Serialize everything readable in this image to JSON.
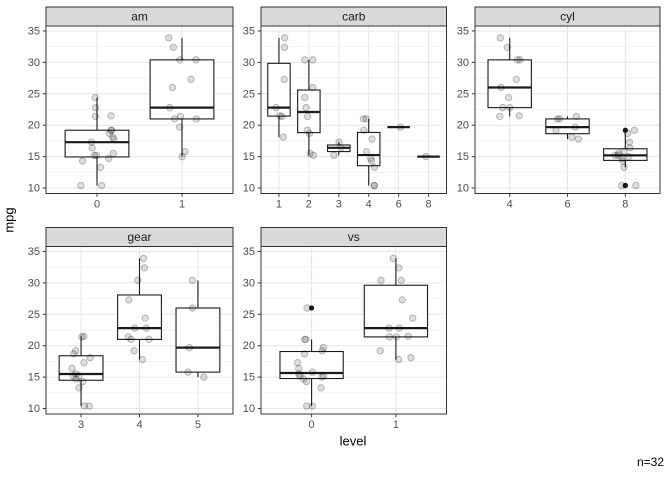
{
  "chart_data": {
    "type": "boxplot",
    "title": "",
    "xlabel": "level",
    "ylabel": "mpg",
    "annotation": "n=32",
    "y_ticks": [
      10,
      15,
      20,
      25,
      30,
      35
    ],
    "y_minor_ticks": [
      12.5,
      17.5,
      22.5,
      27.5,
      32.5
    ],
    "ylim": [
      9.13,
      35.79
    ],
    "grid": "major-and-minor-horizontal, major-vertical-at-levels",
    "legend": "none",
    "style": {
      "background": "#ffffff",
      "strip_fill": "#d9d9d9",
      "strip_text": "#1a1a1a",
      "panel_border": "#333333",
      "grid_major": "#e6e6e6",
      "grid_minor": "#f2f2f2",
      "box_stroke": "#1a1a1a",
      "box_fill": "#ffffff",
      "tick_mark": "#333333",
      "tick_text": "#4d4d4d",
      "jitter_fill": "rgba(0,0,0,0.13)",
      "jitter_stroke": "rgba(0,0,0,0.24)",
      "outlier_fill": "#1a1a1a"
    },
    "facets": [
      {
        "label": "am",
        "row": 0,
        "col": 0,
        "groups": [
          {
            "level": "0",
            "points": [
              21.4,
              18.7,
              18.1,
              14.3,
              24.4,
              22.8,
              19.2,
              17.8,
              16.4,
              17.3,
              15.2,
              10.4,
              10.4,
              14.7,
              21.5,
              15.5,
              15.2,
              13.3,
              19.2
            ],
            "box": {
              "lo": 10.4,
              "q1": 14.95,
              "med": 17.3,
              "q3": 19.2,
              "hi": 24.4,
              "outliers": []
            }
          },
          {
            "level": "1",
            "points": [
              21.0,
              21.0,
              22.8,
              32.4,
              30.4,
              33.9,
              27.3,
              26.0,
              30.4,
              15.8,
              19.7,
              15.0,
              21.4
            ],
            "box": {
              "lo": 15.0,
              "q1": 21.0,
              "med": 22.8,
              "q3": 30.4,
              "hi": 33.9,
              "outliers": []
            }
          }
        ]
      },
      {
        "label": "carb",
        "row": 0,
        "col": 1,
        "groups": [
          {
            "level": "1",
            "points": [
              22.8,
              21.4,
              18.1,
              32.4,
              33.9,
              21.5,
              27.3
            ],
            "box": {
              "lo": 18.1,
              "q1": 21.45,
              "med": 22.8,
              "q3": 29.85,
              "hi": 33.9,
              "outliers": []
            }
          },
          {
            "level": "2",
            "points": [
              18.7,
              24.4,
              22.8,
              30.4,
              15.5,
              15.2,
              19.2,
              26.0,
              30.4,
              21.4
            ],
            "box": {
              "lo": 15.2,
              "q1": 18.825,
              "med": 22.1,
              "q3": 25.6,
              "hi": 30.4,
              "outliers": []
            }
          },
          {
            "level": "3",
            "points": [
              16.4,
              17.3,
              15.2
            ],
            "box": {
              "lo": 15.2,
              "q1": 15.8,
              "med": 16.4,
              "q3": 16.85,
              "hi": 17.3,
              "outliers": []
            }
          },
          {
            "level": "4",
            "points": [
              21.0,
              21.0,
              14.3,
              19.2,
              17.8,
              10.4,
              10.4,
              14.7,
              13.3,
              15.8
            ],
            "box": {
              "lo": 10.4,
              "q1": 13.55,
              "med": 15.25,
              "q3": 18.85,
              "hi": 21.0,
              "outliers": []
            }
          },
          {
            "level": "6",
            "points": [
              19.7
            ],
            "box": {
              "lo": 19.7,
              "q1": 19.7,
              "med": 19.7,
              "q3": 19.7,
              "hi": 19.7,
              "outliers": []
            }
          },
          {
            "level": "8",
            "points": [
              15.0
            ],
            "box": {
              "lo": 15.0,
              "q1": 15.0,
              "med": 15.0,
              "q3": 15.0,
              "hi": 15.0,
              "outliers": []
            }
          }
        ]
      },
      {
        "label": "cyl",
        "row": 0,
        "col": 2,
        "groups": [
          {
            "level": "4",
            "points": [
              22.8,
              24.4,
              22.8,
              32.4,
              30.4,
              33.9,
              21.5,
              27.3,
              26.0,
              30.4,
              21.4
            ],
            "box": {
              "lo": 21.4,
              "q1": 22.8,
              "med": 26.0,
              "q3": 30.4,
              "hi": 33.9,
              "outliers": []
            }
          },
          {
            "level": "6",
            "points": [
              21.0,
              21.0,
              21.4,
              18.1,
              19.2,
              17.8,
              19.7
            ],
            "box": {
              "lo": 17.8,
              "q1": 18.65,
              "med": 19.7,
              "q3": 21.0,
              "hi": 21.4,
              "outliers": []
            }
          },
          {
            "level": "8",
            "points": [
              18.7,
              14.3,
              16.4,
              17.3,
              15.2,
              10.4,
              10.4,
              14.7,
              15.5,
              15.2,
              13.3,
              19.2,
              15.8,
              15.0
            ],
            "box": {
              "lo": 13.3,
              "q1": 14.4,
              "med": 15.2,
              "q3": 16.25,
              "hi": 18.7,
              "outliers": [
                10.4,
                10.4,
                19.2
              ]
            }
          }
        ]
      },
      {
        "label": "gear",
        "row": 1,
        "col": 0,
        "groups": [
          {
            "level": "3",
            "points": [
              21.4,
              18.7,
              18.1,
              14.3,
              16.4,
              17.3,
              15.2,
              10.4,
              10.4,
              14.7,
              21.5,
              15.5,
              15.2,
              13.3,
              19.2
            ],
            "box": {
              "lo": 10.4,
              "q1": 14.5,
              "med": 15.5,
              "q3": 18.4,
              "hi": 21.5,
              "outliers": []
            }
          },
          {
            "level": "4",
            "points": [
              21.0,
              21.0,
              22.8,
              24.4,
              22.8,
              19.2,
              17.8,
              32.4,
              30.4,
              33.9,
              27.3,
              21.4
            ],
            "box": {
              "lo": 17.8,
              "q1": 21.0,
              "med": 22.8,
              "q3": 28.075,
              "hi": 33.9,
              "outliers": []
            }
          },
          {
            "level": "5",
            "points": [
              26.0,
              30.4,
              15.8,
              19.7,
              15.0
            ],
            "box": {
              "lo": 15.0,
              "q1": 15.8,
              "med": 19.7,
              "q3": 26.0,
              "hi": 30.4,
              "outliers": []
            }
          }
        ]
      },
      {
        "label": "vs",
        "row": 1,
        "col": 1,
        "groups": [
          {
            "level": "0",
            "points": [
              21.0,
              21.0,
              18.7,
              14.3,
              16.4,
              17.3,
              15.2,
              10.4,
              10.4,
              14.7,
              15.5,
              15.2,
              13.3,
              19.2,
              26.0,
              15.8,
              19.7,
              15.0
            ],
            "box": {
              "lo": 10.4,
              "q1": 14.775,
              "med": 15.65,
              "q3": 19.075,
              "hi": 21.0,
              "outliers": [
                26.0
              ]
            }
          },
          {
            "level": "1",
            "points": [
              22.8,
              21.4,
              18.1,
              24.4,
              22.8,
              19.2,
              17.8,
              32.4,
              30.4,
              33.9,
              21.5,
              27.3,
              30.4,
              21.4
            ],
            "box": {
              "lo": 17.8,
              "q1": 21.4,
              "med": 22.8,
              "q3": 29.625,
              "hi": 33.9,
              "outliers": []
            }
          }
        ]
      }
    ]
  }
}
